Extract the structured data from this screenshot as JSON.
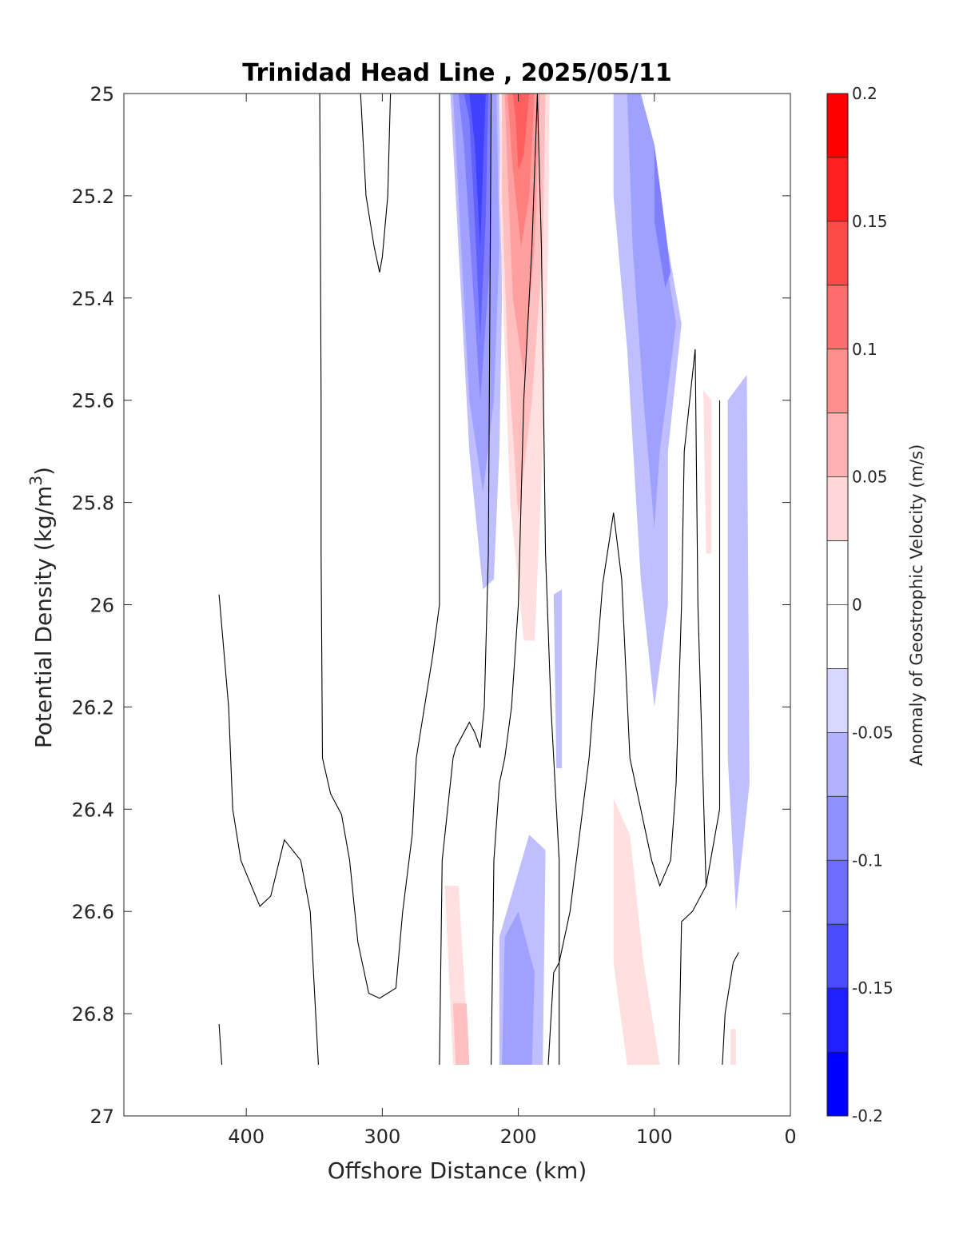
{
  "chart_data": {
    "type": "contour",
    "title": "Trinidad Head Line , 2025/05/11",
    "xlabel": "Offshore Distance (km)",
    "ylabel_main": "Potential Density (kg/m",
    "ylabel_sup": "3",
    "ylabel_close": ")",
    "xlim": [
      490,
      0
    ],
    "ylim": [
      27,
      25
    ],
    "x_reversed": true,
    "y_reversed": true,
    "xticks": [
      400,
      300,
      200,
      100,
      0
    ],
    "xtick_labels": [
      "400",
      "300",
      "200",
      "100",
      "0"
    ],
    "yticks": [
      25,
      25.2,
      25.4,
      25.6,
      25.8,
      26,
      26.2,
      26.4,
      26.6,
      26.8,
      27
    ],
    "ytick_labels": [
      "25",
      "25.2",
      "25.4",
      "25.6",
      "25.8",
      "26",
      "26.2",
      "26.4",
      "26.6",
      "26.8",
      "27"
    ],
    "colorbar": {
      "label": "Anomaly of Geostrophic Velocity (m/s)",
      "min": -0.2,
      "max": 0.2,
      "levels": 16,
      "ticks": [
        0.2,
        0.15,
        0.1,
        0.05,
        0,
        -0.05,
        -0.1,
        -0.15,
        -0.2
      ],
      "tick_labels": [
        "0.2",
        "0.15",
        "0.1",
        "0.05",
        "0",
        "-0.05",
        "-0.1",
        "-0.15",
        "-0.2"
      ],
      "colors": [
        "#0000ff",
        "#2020ff",
        "#4040ff",
        "#6060ff",
        "#8080ff",
        "#a0a0ff",
        "#bfbfff",
        "#dfdfff",
        "#ffffff",
        "#ffffff",
        "#ffdfdf",
        "#ffbfbf",
        "#ff9f9f",
        "#ff7f7f",
        "#ff5f5f",
        "#ff2020",
        "#ff0000"
      ]
    },
    "bands": [
      {
        "name": "Jet negative core",
        "x": [
          250,
          242,
          236,
          228,
          222,
          216,
          214,
          220,
          224,
          226,
          230,
          236,
          244,
          248
        ],
        "y": [
          25,
          25,
          25.3,
          25.7,
          25.9,
          25.95,
          25.8,
          25.5,
          25.2,
          25,
          25,
          25,
          25,
          25
        ],
        "poly": [
          [
            250,
            25
          ],
          [
            214,
            25
          ],
          [
            212,
            25.4
          ],
          [
            214,
            25.7
          ],
          [
            218,
            25.95
          ],
          [
            226,
            25.97
          ],
          [
            236,
            25.7
          ],
          [
            244,
            25.3
          ],
          [
            250,
            25
          ]
        ],
        "value": -0.05
      },
      {
        "name": "Jet negative 2",
        "poly": [
          [
            248,
            25
          ],
          [
            216,
            25
          ],
          [
            214,
            25.3
          ],
          [
            218,
            25.6
          ],
          [
            226,
            25.78
          ],
          [
            236,
            25.6
          ],
          [
            242,
            25.3
          ]
        ],
        "value": -0.075
      },
      {
        "name": "Jet negative 3",
        "poly": [
          [
            244,
            25
          ],
          [
            220,
            25
          ],
          [
            220,
            25.3
          ],
          [
            228,
            25.6
          ],
          [
            234,
            25.35
          ],
          [
            240,
            25.1
          ]
        ],
        "value": -0.1
      },
      {
        "name": "Jet negative 4",
        "poly": [
          [
            240,
            25
          ],
          [
            222,
            25
          ],
          [
            224,
            25.25
          ],
          [
            228,
            25.48
          ],
          [
            232,
            25.25
          ],
          [
            236,
            25.05
          ]
        ],
        "value": -0.125
      },
      {
        "name": "Jet negative 5",
        "poly": [
          [
            236,
            25
          ],
          [
            224,
            25
          ],
          [
            226,
            25.15
          ],
          [
            228,
            25.3
          ],
          [
            232,
            25.1
          ]
        ],
        "value": -0.15
      },
      {
        "name": "Jet positive",
        "poly": [
          [
            213,
            25
          ],
          [
            177,
            25
          ],
          [
            178,
            25.3
          ],
          [
            182,
            25.7
          ],
          [
            188,
            26.07
          ],
          [
            196,
            26.07
          ],
          [
            206,
            25.8
          ],
          [
            210,
            25.5
          ],
          [
            214,
            25.2
          ]
        ],
        "value": 0.05
      },
      {
        "name": "Jet positive 2",
        "poly": [
          [
            212,
            25
          ],
          [
            180,
            25
          ],
          [
            182,
            25.3
          ],
          [
            190,
            25.6
          ],
          [
            200,
            25.83
          ],
          [
            208,
            25.5
          ],
          [
            212,
            25.2
          ]
        ],
        "value": 0.075
      },
      {
        "name": "Jet positive 3",
        "poly": [
          [
            210,
            25
          ],
          [
            184,
            25
          ],
          [
            188,
            25.3
          ],
          [
            196,
            25.55
          ],
          [
            204,
            25.4
          ],
          [
            208,
            25.15
          ]
        ],
        "value": 0.1
      },
      {
        "name": "Jet positive 4",
        "poly": [
          [
            208,
            25
          ],
          [
            188,
            25
          ],
          [
            192,
            25.2
          ],
          [
            198,
            25.3
          ],
          [
            204,
            25.15
          ]
        ],
        "value": 0.125
      },
      {
        "name": "Jet positive 5",
        "poly": [
          [
            204,
            25
          ],
          [
            192,
            25
          ],
          [
            196,
            25.12
          ],
          [
            200,
            25.15
          ],
          [
            202,
            25.05
          ]
        ],
        "value": 0.15
      },
      {
        "name": "Coastal negative",
        "poly": [
          [
            130,
            25
          ],
          [
            110,
            25
          ],
          [
            100,
            25.1
          ],
          [
            90,
            25.3
          ],
          [
            80,
            25.45
          ],
          [
            90,
            25.7
          ],
          [
            90,
            26
          ],
          [
            100,
            26.2
          ],
          [
            110,
            25.95
          ],
          [
            120,
            25.5
          ],
          [
            130,
            25.2
          ]
        ],
        "value": -0.05
      },
      {
        "name": "Coastal negative 2",
        "poly": [
          [
            120,
            25
          ],
          [
            110,
            25
          ],
          [
            100,
            25.1
          ],
          [
            90,
            25.35
          ],
          [
            84,
            25.45
          ],
          [
            96,
            25.7
          ],
          [
            100,
            25.85
          ],
          [
            108,
            25.6
          ],
          [
            116,
            25.3
          ]
        ],
        "value": -0.075
      },
      {
        "name": "Coastal negative 3",
        "poly": [
          [
            100,
            25.1
          ],
          [
            95,
            25.2
          ],
          [
            88,
            25.35
          ],
          [
            92,
            25.38
          ],
          [
            100,
            25.25
          ]
        ],
        "value": -0.1
      },
      {
        "name": "Inshore negative",
        "poly": [
          [
            46,
            25.6
          ],
          [
            32,
            25.55
          ],
          [
            30,
            26.35
          ],
          [
            40,
            26.6
          ],
          [
            46,
            26.3
          ]
        ],
        "value": -0.05
      },
      {
        "name": "Small negative",
        "poly": [
          [
            174,
            25.98
          ],
          [
            168,
            25.97
          ],
          [
            168,
            26.32
          ],
          [
            172,
            26.32
          ]
        ],
        "value": -0.05
      },
      {
        "name": "Deep positive",
        "poly": [
          [
            254,
            26.55
          ],
          [
            244,
            26.55
          ],
          [
            236,
            26.9
          ],
          [
            248,
            26.9
          ]
        ],
        "value": 0.05
      },
      {
        "name": "Deep positive core",
        "poly": [
          [
            248,
            26.78
          ],
          [
            238,
            26.78
          ],
          [
            236,
            26.9
          ],
          [
            246,
            26.9
          ]
        ],
        "value": 0.075
      },
      {
        "name": "Deep negative",
        "poly": [
          [
            214,
            26.65
          ],
          [
            192,
            26.45
          ],
          [
            180,
            26.48
          ],
          [
            182,
            26.9
          ],
          [
            214,
            26.9
          ]
        ],
        "value": -0.05
      },
      {
        "name": "Deep negative core",
        "poly": [
          [
            210,
            26.65
          ],
          [
            200,
            26.6
          ],
          [
            188,
            26.72
          ],
          [
            190,
            26.9
          ],
          [
            212,
            26.9
          ]
        ],
        "value": -0.075
      },
      {
        "name": "Coastal deep positive",
        "poly": [
          [
            130,
            26.38
          ],
          [
            118,
            26.45
          ],
          [
            108,
            26.7
          ],
          [
            96,
            26.9
          ],
          [
            120,
            26.9
          ],
          [
            130,
            26.7
          ]
        ],
        "value": 0.05
      },
      {
        "name": "Thin positive",
        "poly": [
          [
            64,
            25.58
          ],
          [
            58,
            25.6
          ],
          [
            58,
            25.9
          ],
          [
            62,
            25.9
          ]
        ],
        "value": 0.05
      },
      {
        "name": "Thin positive 2",
        "poly": [
          [
            44,
            26.83
          ],
          [
            40,
            26.83
          ],
          [
            40,
            26.9
          ],
          [
            44,
            26.9
          ]
        ],
        "value": 0.05
      }
    ],
    "contour_lines": [
      {
        "name": "contour-a",
        "x": [
          420,
          413,
          410,
          404,
          390,
          382,
          372,
          360,
          353,
          347
        ],
        "y": [
          25.98,
          26.2,
          26.4,
          26.5,
          26.59,
          26.57,
          26.46,
          26.5,
          26.6,
          26.9
        ]
      },
      {
        "name": "contour-b",
        "x": [
          420,
          418
        ],
        "y": [
          26.82,
          26.9
        ]
      },
      {
        "name": "contour-c",
        "x": [
          346,
          345,
          345,
          344,
          338,
          330,
          324,
          318,
          310,
          302,
          290,
          285,
          278,
          275,
          263,
          258,
          258
        ],
        "y": [
          25,
          25.6,
          25.9,
          26.3,
          26.37,
          26.41,
          26.5,
          26.66,
          26.76,
          26.77,
          26.75,
          26.6,
          26.45,
          26.3,
          26.1,
          26,
          25
        ]
      },
      {
        "name": "contour-d",
        "x": [
          316,
          312,
          306,
          302,
          300,
          296,
          294
        ],
        "y": [
          25,
          25.2,
          25.3,
          25.35,
          25.32,
          25.2,
          25
        ]
      },
      {
        "name": "contour-e",
        "x": [
          258,
          256,
          248,
          246,
          236,
          232,
          228,
          225,
          224,
          222,
          220
        ],
        "y": [
          26.9,
          26.5,
          26.3,
          26.28,
          26.23,
          26.25,
          26.28,
          26.2,
          26.1,
          25.9,
          25
        ]
      },
      {
        "name": "contour-f",
        "x": [
          220,
          218,
          214,
          210,
          205,
          200,
          196,
          190,
          186,
          183,
          180,
          176,
          170,
          170
        ],
        "y": [
          26.9,
          26.5,
          26.35,
          26.3,
          26.2,
          26.0,
          25.6,
          25.3,
          25.0,
          25.3,
          25.9,
          26.2,
          26.5,
          26.9
        ]
      },
      {
        "name": "contour-g",
        "x": [
          178,
          174,
          170,
          162,
          148,
          138,
          130,
          124,
          118,
          110,
          102,
          96,
          88,
          84,
          80,
          78,
          70,
          68,
          62
        ],
        "y": [
          26.9,
          26.72,
          26.7,
          26.6,
          26.3,
          25.96,
          25.82,
          25.95,
          26.3,
          26.4,
          26.5,
          26.55,
          26.5,
          26.35,
          26.0,
          25.7,
          25.5,
          26.0,
          26.55
        ]
      },
      {
        "name": "contour-h",
        "x": [
          82,
          80,
          72,
          62,
          52,
          52
        ],
        "y": [
          26.9,
          26.62,
          26.6,
          26.55,
          26.4,
          25.6
        ]
      },
      {
        "name": "contour-i",
        "x": [
          50,
          48,
          42,
          38
        ],
        "y": [
          26.9,
          26.8,
          26.7,
          26.68
        ]
      }
    ]
  }
}
